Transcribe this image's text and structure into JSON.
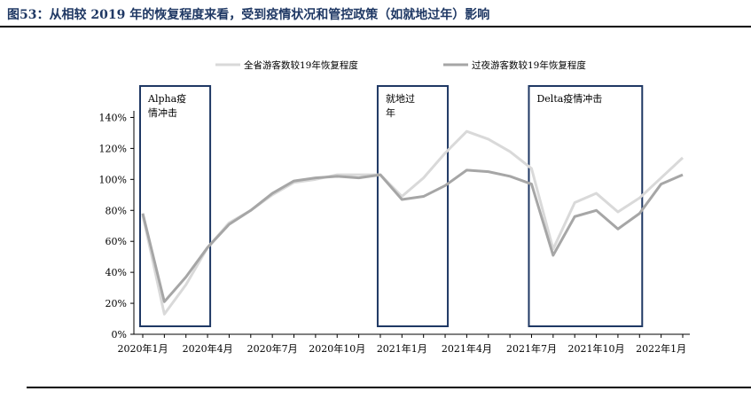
{
  "figure": {
    "title": "图53：从相较 2019 年的恢复程度来看，受到疫情状况和管控政策（如就地过年）影响"
  },
  "chart_data": {
    "type": "line",
    "x": [
      "2020-01",
      "2020-02",
      "2020-03",
      "2020-04",
      "2020-05",
      "2020-06",
      "2020-07",
      "2020-08",
      "2020-09",
      "2020-10",
      "2020-11",
      "2020-12",
      "2021-01",
      "2021-02",
      "2021-03",
      "2021-04",
      "2021-05",
      "2021-06",
      "2021-07",
      "2021-08",
      "2021-09",
      "2021-10",
      "2021-11",
      "2021-12",
      "2022-01",
      "2022-02"
    ],
    "x_tick_labels": [
      {
        "x": "2020-01",
        "label": "2020年1月"
      },
      {
        "x": "2020-04",
        "label": "2020年4月"
      },
      {
        "x": "2020-07",
        "label": "2020年7月"
      },
      {
        "x": "2020-10",
        "label": "2020年10月"
      },
      {
        "x": "2021-01",
        "label": "2021年1月"
      },
      {
        "x": "2021-04",
        "label": "2021年4月"
      },
      {
        "x": "2021-07",
        "label": "2021年7月"
      },
      {
        "x": "2021-10",
        "label": "2021年10月"
      },
      {
        "x": "2022-01",
        "label": "2022年1月"
      }
    ],
    "series": [
      {
        "name": "全省游客数较19年恢复程度",
        "color": "#d9d9d9",
        "values": [
          77,
          13,
          32,
          56,
          72,
          80,
          90,
          98,
          100,
          103,
          103,
          103,
          89,
          101,
          117,
          131,
          126,
          118,
          107,
          55,
          85,
          91,
          79,
          88,
          101,
          114
        ]
      },
      {
        "name": "过夜游客数较19年恢复程度",
        "color": "#a6a6a6",
        "values": [
          78,
          21,
          37,
          56,
          71,
          80,
          91,
          99,
          101,
          102,
          101,
          103,
          87,
          89,
          96,
          106,
          105,
          102,
          97,
          51,
          76,
          80,
          68,
          78,
          97,
          103
        ]
      }
    ],
    "y_ticks": [
      "0%",
      "20%",
      "40%",
      "60%",
      "80%",
      "100%",
      "120%",
      "140%"
    ],
    "ylim": [
      0,
      150
    ],
    "annotations": [
      {
        "label": "Alpha疫情冲击",
        "x_start": "2020-01",
        "x_end": "2020-04"
      },
      {
        "label": "就地过年",
        "x_start": "2020-12",
        "x_end": "2021-03"
      },
      {
        "label": "Delta疫情冲击",
        "x_start": "2021-07",
        "x_end": "2021-12"
      }
    ],
    "legend_position": "top",
    "grid": false
  }
}
